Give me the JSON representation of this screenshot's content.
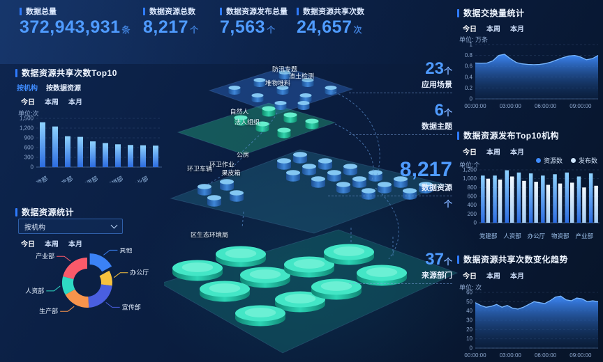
{
  "kpis": [
    {
      "label": "数据总量",
      "value": "372,943,931",
      "unit": "条"
    },
    {
      "label": "数据资源总数",
      "value": "8,217",
      "unit": "个"
    },
    {
      "label": "数据资源发布总量",
      "value": "7,563",
      "unit": "个"
    },
    {
      "label": "数据资源共享次数",
      "value": "24,657",
      "unit": "次"
    }
  ],
  "time_tabs": [
    "今日",
    "本周",
    "本月"
  ],
  "left_panels": {
    "share_top10": {
      "title": "数据资源共享次数Top10",
      "subtabs": [
        "按机构",
        "按数据资源"
      ],
      "unit_label": "单位:次"
    },
    "resource_stats": {
      "title": "数据资源统计",
      "dropdown_value": "按机构"
    }
  },
  "right_panels": {
    "exchange": {
      "title": "数据交换量统计",
      "unit_label": "单位: 万条"
    },
    "publish": {
      "title": "数据资源发布Top10机构",
      "unit_label": "单位:个",
      "legend": [
        "资源数",
        "发布数"
      ]
    },
    "trend": {
      "title": "数据资源共享次数变化趋势",
      "unit_label": "单位: 次"
    }
  },
  "center": {
    "metrics": [
      {
        "value": "23",
        "unit": "个",
        "label": "应用场景"
      },
      {
        "value": "6",
        "unit": "个",
        "label": "数据主题"
      },
      {
        "value": "8,217",
        "unit": "个",
        "label": "数据资源"
      },
      {
        "value": "37",
        "unit": "个",
        "label": "来源部门"
      }
    ],
    "layers": [
      {
        "labels": [
          "防汛专题",
          "渣土检测",
          "堆物堆料"
        ]
      },
      {
        "labels": [
          "自然人",
          "法人组织"
        ]
      },
      {
        "labels": [
          "公房",
          "环卫作业",
          "环卫车辆",
          "果皮箱"
        ]
      },
      {
        "labels": [
          "区生态环境局"
        ]
      }
    ]
  },
  "colors": {
    "accent": "#2f7bff",
    "number_blue": "#4f9bff",
    "bar_blue": "#3f8cff",
    "bar_light": "#cfe6ff"
  },
  "chart_data": [
    {
      "id": "c-exchange",
      "type": "area",
      "title": "数据交换量统计",
      "ylabel": "单位: 万条",
      "ylim": [
        0,
        1
      ],
      "yticks": [
        0,
        0.2,
        0.4,
        0.6,
        0.8,
        1
      ],
      "xticks": [
        "00:00:00",
        "03:00:00",
        "06:00:00",
        "09:00:00"
      ],
      "values": [
        0.66,
        0.655,
        0.66,
        0.7,
        0.8,
        0.82,
        0.74,
        0.67,
        0.645,
        0.635,
        0.63,
        0.635,
        0.65,
        0.68,
        0.72,
        0.76,
        0.79,
        0.8,
        0.77,
        0.72,
        0.74,
        0.8
      ]
    },
    {
      "id": "c-publish",
      "type": "bar",
      "title": "数据资源发布Top10机构",
      "ylabel": "单位:个",
      "ylim": [
        0,
        1200
      ],
      "yticks": [
        0,
        200,
        400,
        600,
        800,
        1000,
        1200
      ],
      "tick_labels": [
        "党建部",
        "人资部",
        "办公厅",
        "物资部",
        "产业部"
      ],
      "series": [
        {
          "name": "资源数",
          "values": [
            1070,
            1070,
            1190,
            1140,
            1120,
            1070,
            1100,
            1140,
            1050,
            1120
          ]
        },
        {
          "name": "发布数",
          "values": [
            1000,
            980,
            1050,
            950,
            930,
            860,
            890,
            910,
            800,
            840
          ]
        }
      ]
    },
    {
      "id": "c-trend",
      "type": "area",
      "title": "数据资源共享次数变化趋势",
      "ylabel": "单位: 次",
      "ylim": [
        0,
        60
      ],
      "yticks": [
        0,
        10,
        20,
        30,
        40,
        50,
        60
      ],
      "xticks": [
        "00:00:00",
        "03:00:00",
        "06:00:00",
        "09:00:00"
      ],
      "values": [
        49,
        46,
        44,
        45,
        47,
        44,
        46,
        43,
        42,
        44,
        47,
        50,
        49,
        48,
        51,
        55,
        56,
        52,
        51,
        54,
        53,
        50,
        51,
        50
      ]
    },
    {
      "id": "c-share",
      "type": "bar",
      "title": "数据资源共享次数Top10",
      "ylabel": "单位:次",
      "ylim": [
        0,
        1500
      ],
      "yticks": [
        0,
        300,
        600,
        900,
        1200,
        1500
      ],
      "tick_labels": [
        "人资部",
        "生产部",
        "宣传部",
        "营销部",
        "产业部"
      ],
      "values": [
        1380,
        1250,
        950,
        930,
        790,
        740,
        700,
        680,
        670,
        660
      ]
    },
    {
      "id": "c-pie",
      "type": "pie",
      "title": "数据资源统计",
      "segments": [
        {
          "label": "其他",
          "value": 17,
          "color": "#3b82f6",
          "offset": true
        },
        {
          "label": "办公厅",
          "value": 10,
          "color": "#f7c13e"
        },
        {
          "label": "宣传部",
          "value": 22,
          "color": "#4a5fe0"
        },
        {
          "label": "生产部",
          "value": 18,
          "color": "#f8944c"
        },
        {
          "label": "人资部",
          "value": 12,
          "color": "#2ed9c3"
        },
        {
          "label": "产业部",
          "value": 21,
          "color": "#fa5a6a"
        }
      ]
    }
  ]
}
